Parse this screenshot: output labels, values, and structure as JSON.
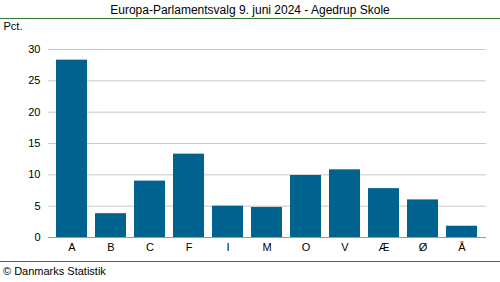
{
  "chart_data": {
    "type": "bar",
    "title": "Europa-Parlamentsvalg 9. juni 2024 - Agedrup Skole",
    "y_label": "Pct.",
    "source": "© Danmarks Statistik",
    "categories": [
      "A",
      "B",
      "C",
      "F",
      "I",
      "M",
      "O",
      "V",
      "Æ",
      "Ø",
      "Å"
    ],
    "values": [
      28.3,
      3.8,
      9.0,
      13.3,
      5.0,
      4.8,
      9.9,
      10.8,
      7.8,
      6.0,
      1.8
    ],
    "color": "#00628f",
    "ylim": [
      0,
      30
    ],
    "yticks": [
      0,
      5,
      10,
      15,
      20,
      25,
      30
    ],
    "grid": true
  }
}
